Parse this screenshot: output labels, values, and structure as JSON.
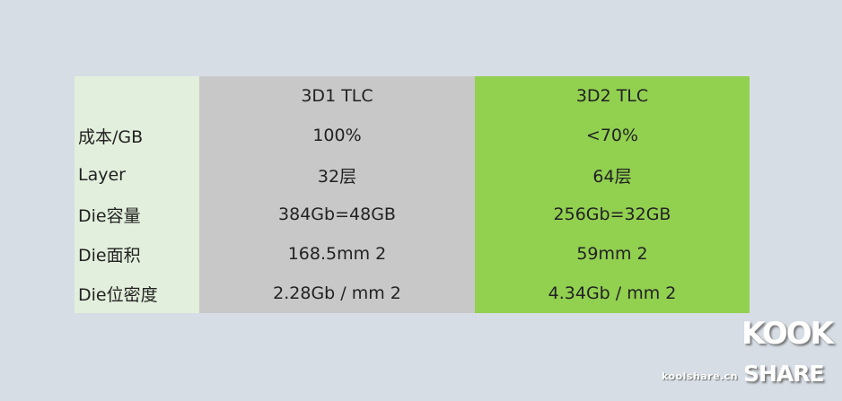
{
  "table": {
    "header": [
      "",
      "3D1 TLC",
      "3D2 TLC"
    ],
    "rows": [
      [
        "成本/GB",
        "100%",
        "<70%"
      ],
      [
        "Layer",
        "32层",
        "64层"
      ],
      [
        "Die容量",
        "384Gb=48GB",
        "256Gb=32GB"
      ],
      [
        "Die面积",
        "168.5mm 2",
        "59mm 2"
      ],
      [
        "Die位密度",
        "2.28Gb / mm 2",
        "4.34Gb / mm 2"
      ]
    ]
  },
  "colors": {
    "background": "#d6dde5",
    "label_column": "#e2efdc",
    "col_3d1": "#c9c8c9",
    "col_3d2": "#92d050"
  },
  "watermark": {
    "site": "koolshare.cn",
    "logo_top": "KOOK",
    "logo_bottom": "SHARE"
  }
}
